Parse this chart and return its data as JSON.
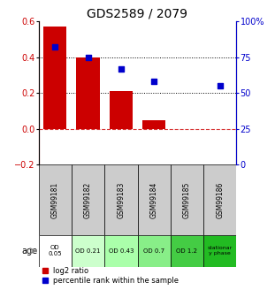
{
  "title": "GDS2589 / 2079",
  "samples": [
    "GSM99181",
    "GSM99182",
    "GSM99183",
    "GSM99184",
    "GSM99185",
    "GSM99186"
  ],
  "log2_ratio": [
    0.57,
    0.4,
    0.21,
    0.05,
    0.0,
    0.0
  ],
  "percentile_rank_pct": [
    82,
    75,
    67,
    58,
    null,
    55
  ],
  "ylim_left": [
    -0.2,
    0.6
  ],
  "ylim_right": [
    0,
    100
  ],
  "yticks_left": [
    -0.2,
    0.0,
    0.2,
    0.4,
    0.6
  ],
  "yticks_right": [
    0,
    25,
    50,
    75,
    100
  ],
  "ytick_labels_right": [
    "0",
    "25",
    "50",
    "75",
    "100%"
  ],
  "hline_dotted": [
    0.2,
    0.4
  ],
  "bar_color": "#cc0000",
  "dot_color": "#0000cc",
  "zero_line_color": "#cc0000",
  "age_labels": [
    "OD\n0.05",
    "OD 0.21",
    "OD 0.43",
    "OD 0.7",
    "OD 1.2",
    "stationar\ny phase"
  ],
  "age_bg_colors": [
    "#ffffff",
    "#ccffcc",
    "#aaffaa",
    "#88ee88",
    "#44cc44",
    "#22bb22"
  ],
  "sample_bg_color": "#cccccc",
  "legend_bar_label": "log2 ratio",
  "legend_dot_label": "percentile rank within the sample",
  "title_fontsize": 10,
  "tick_fontsize": 7,
  "sample_fontsize": 5.5
}
